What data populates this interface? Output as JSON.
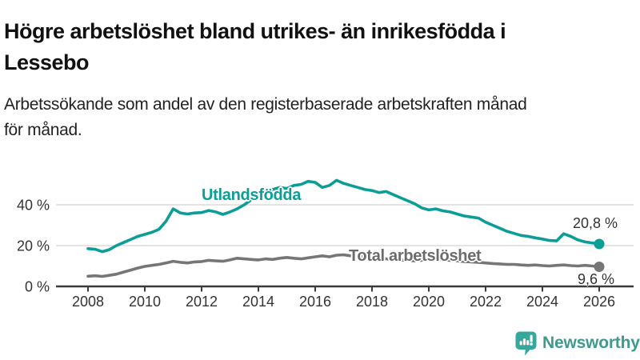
{
  "header": {
    "title_line1": "Högre arbetslöshet bland utrikes- än inrikesfödda i",
    "title_line2": "Lessebo",
    "subtitle_line1": "Arbetssökande som andel av den registerbaserade arbetskraften månad",
    "subtitle_line2": "för månad."
  },
  "chart_data": {
    "type": "line",
    "title": "Högre arbetslöshet bland utrikes- än inrikesfödda i Lessebo",
    "subtitle": "Arbetssökande som andel av den registerbaserade arbetskraften månad för månad.",
    "xlabel": "",
    "ylabel": "",
    "grid": "horizontal",
    "legend_position": "inline-labels-on-lines",
    "xlim": [
      2007,
      2027.2
    ],
    "ylim": [
      0,
      55
    ],
    "x_ticks": [
      2008,
      2010,
      2012,
      2014,
      2016,
      2018,
      2020,
      2022,
      2024,
      2026
    ],
    "y_ticks": [
      {
        "value": 0,
        "label": "0 %"
      },
      {
        "value": 20,
        "label": "20 %"
      },
      {
        "value": 40,
        "label": "40 %"
      }
    ],
    "x": [
      2008,
      2008.25,
      2008.5,
      2008.75,
      2009,
      2009.25,
      2009.5,
      2009.75,
      2010,
      2010.25,
      2010.5,
      2010.75,
      2011,
      2011.25,
      2011.5,
      2011.75,
      2012,
      2012.25,
      2012.5,
      2012.75,
      2013,
      2013.25,
      2013.5,
      2013.75,
      2014,
      2014.25,
      2014.5,
      2014.75,
      2015,
      2015.25,
      2015.5,
      2015.75,
      2016,
      2016.25,
      2016.5,
      2016.75,
      2017,
      2017.25,
      2017.5,
      2017.75,
      2018,
      2018.25,
      2018.5,
      2018.75,
      2019,
      2019.25,
      2019.5,
      2019.75,
      2020,
      2020.25,
      2020.5,
      2020.75,
      2021,
      2021.25,
      2021.5,
      2021.75,
      2022,
      2022.25,
      2022.5,
      2022.75,
      2023,
      2023.25,
      2023.5,
      2023.75,
      2024,
      2024.25,
      2024.5,
      2024.75,
      2025,
      2025.25,
      2025.5,
      2025.75,
      2026
    ],
    "series": [
      {
        "name": "Utlandsfödda",
        "color": "#0c9e96",
        "end_label": "20,8 %",
        "end_value": 20.8,
        "values": [
          18.5,
          18.2,
          17.0,
          18.0,
          20.0,
          21.5,
          23.0,
          24.5,
          25.5,
          26.5,
          28.0,
          32.0,
          38.0,
          36.0,
          35.5,
          36.0,
          36.2,
          37.2,
          36.5,
          35.3,
          36.5,
          38.0,
          40.0,
          42.5,
          44.5,
          46.5,
          47.5,
          48.5,
          48.0,
          49.5,
          50.0,
          51.5,
          51.0,
          48.5,
          49.5,
          52.0,
          50.5,
          49.5,
          48.5,
          47.5,
          47.0,
          46.0,
          46.5,
          45.0,
          43.5,
          42.0,
          40.5,
          38.5,
          37.5,
          38.0,
          37.0,
          36.5,
          35.5,
          34.5,
          34.0,
          33.5,
          31.5,
          30.0,
          28.5,
          27.0,
          26.0,
          25.0,
          24.5,
          23.8,
          23.2,
          22.5,
          22.3,
          25.8,
          24.5,
          22.8,
          21.8,
          21.3,
          20.8
        ]
      },
      {
        "name": "Total arbetslöshet",
        "color": "#767676",
        "label_color": "#6b6b6b",
        "end_label": "9,6 %",
        "end_value": 9.6,
        "values": [
          5.0,
          5.2,
          4.9,
          5.4,
          6.0,
          7.0,
          8.0,
          9.0,
          9.8,
          10.3,
          10.8,
          11.5,
          12.3,
          11.8,
          11.5,
          12.0,
          12.2,
          12.8,
          12.5,
          12.3,
          13.0,
          13.8,
          13.5,
          13.2,
          13.0,
          13.5,
          13.2,
          13.8,
          14.2,
          13.8,
          13.5,
          14.0,
          14.5,
          15.0,
          14.5,
          15.3,
          15.5,
          15.0,
          14.8,
          14.5,
          14.0,
          13.8,
          13.5,
          13.2,
          13.0,
          12.8,
          12.5,
          12.8,
          13.2,
          13.5,
          13.0,
          12.8,
          12.5,
          12.2,
          12.0,
          11.8,
          11.5,
          11.2,
          11.0,
          10.8,
          10.8,
          10.5,
          10.3,
          10.5,
          10.2,
          10.0,
          10.3,
          10.5,
          10.2,
          10.0,
          10.3,
          10.0,
          9.6
        ]
      }
    ]
  },
  "branding": {
    "logo_text": "Newsworthy",
    "logo_text_color": "#3e998f",
    "logo_icon_color": "#36a79b"
  },
  "colors": {
    "axis": "#3a3a3a",
    "grid": "#dcdcdc",
    "tick_text": "#333333"
  }
}
